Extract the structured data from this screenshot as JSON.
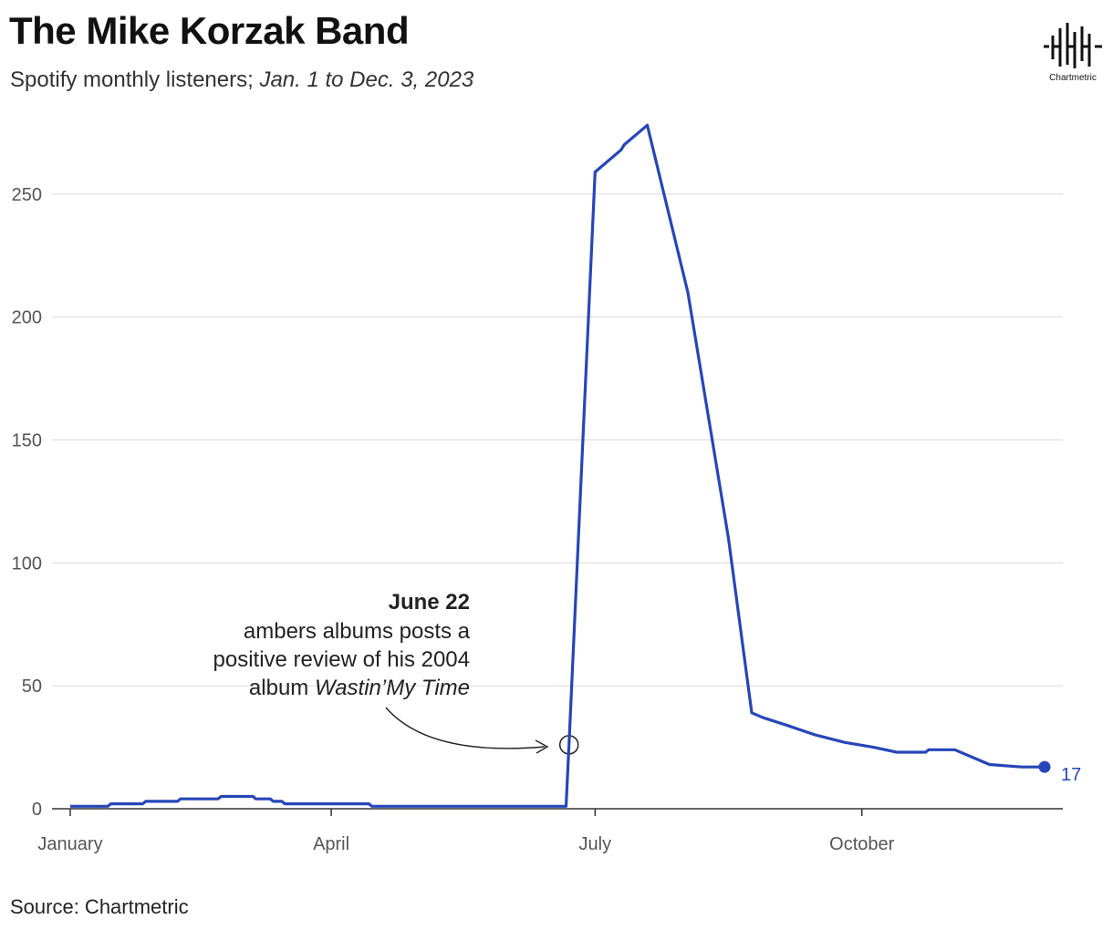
{
  "header": {
    "title": "The Mike Korzak Band",
    "subtitle_plain": "Spotify monthly listeners; ",
    "subtitle_italic": "Jan. 1 to Dec. 3, 2023"
  },
  "logo": {
    "icon": "chartmetric-waveform-icon",
    "label": "Chartmetric"
  },
  "footer": {
    "source": "Source: Chartmetric"
  },
  "annotation": {
    "title": "June 22",
    "lines": [
      "ambers albums posts a",
      "positive review of his 2004"
    ],
    "last_line_plain": "album ",
    "last_line_italic": "Wastin’My Time",
    "date": "2023-06-22",
    "value": 26
  },
  "end_label": "17",
  "colors": {
    "line": "#2646b8",
    "grid": "#dddddd",
    "axis": "#333333",
    "text": "#111111"
  },
  "chart_data": {
    "type": "line",
    "title": "The Mike Korzak Band",
    "subtitle": "Spotify monthly listeners; Jan. 1 to Dec. 3, 2023",
    "xlabel": "",
    "ylabel": "",
    "xlim": [
      "2023-01-01",
      "2023-12-03"
    ],
    "ylim": [
      0,
      280
    ],
    "yticks": [
      0,
      50,
      100,
      150,
      200,
      250
    ],
    "xticks": [
      {
        "date": "2023-01-01",
        "label": "January"
      },
      {
        "date": "2023-04-01",
        "label": "April"
      },
      {
        "date": "2023-07-01",
        "label": "July"
      },
      {
        "date": "2023-10-01",
        "label": "October"
      }
    ],
    "grid": true,
    "series": [
      {
        "points": [
          [
            "2023-01-01",
            1
          ],
          [
            "2023-01-14",
            1
          ],
          [
            "2023-01-15",
            2
          ],
          [
            "2023-01-26",
            2
          ],
          [
            "2023-01-27",
            3
          ],
          [
            "2023-02-07",
            3
          ],
          [
            "2023-02-08",
            4
          ],
          [
            "2023-02-21",
            4
          ],
          [
            "2023-02-22",
            5
          ],
          [
            "2023-03-05",
            5
          ],
          [
            "2023-03-06",
            4
          ],
          [
            "2023-03-11",
            4
          ],
          [
            "2023-03-12",
            3
          ],
          [
            "2023-03-15",
            3
          ],
          [
            "2023-03-16",
            2
          ],
          [
            "2023-04-14",
            2
          ],
          [
            "2023-04-15",
            1
          ],
          [
            "2023-06-21",
            1
          ],
          [
            "2023-06-22",
            26
          ],
          [
            "2023-07-01",
            259
          ],
          [
            "2023-07-10",
            268
          ],
          [
            "2023-07-11",
            270
          ],
          [
            "2023-07-19",
            278
          ],
          [
            "2023-08-02",
            210
          ],
          [
            "2023-08-16",
            110
          ],
          [
            "2023-08-24",
            39
          ],
          [
            "2023-08-28",
            37
          ],
          [
            "2023-09-05",
            34
          ],
          [
            "2023-09-15",
            30
          ],
          [
            "2023-09-25",
            27
          ],
          [
            "2023-10-05",
            25
          ],
          [
            "2023-10-13",
            23
          ],
          [
            "2023-10-23",
            23
          ],
          [
            "2023-10-24",
            24
          ],
          [
            "2023-11-02",
            24
          ],
          [
            "2023-11-08",
            21
          ],
          [
            "2023-11-14",
            18
          ],
          [
            "2023-11-25",
            17
          ],
          [
            "2023-12-03",
            17
          ]
        ]
      }
    ]
  }
}
